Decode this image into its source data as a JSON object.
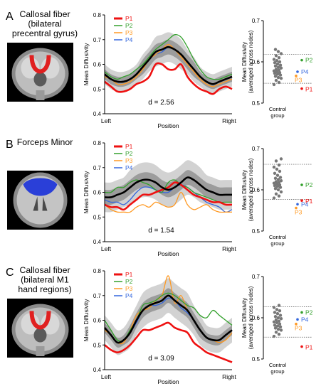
{
  "figure": {
    "panels": [
      {
        "letter": "A",
        "title_lines": [
          "Callosal fiber",
          "(bilateral",
          "precentral gyrus)"
        ],
        "effect_size": "d = 2.56",
        "brain_view": "coronal",
        "tract_color": "#e02020"
      },
      {
        "letter": "B",
        "title_lines": [
          "Forceps Minor"
        ],
        "effect_size": "d = 1.54",
        "brain_view": "axial",
        "tract_color": "#2a3fd8"
      },
      {
        "letter": "C",
        "title_lines": [
          "Callosal fiber",
          "(bilateral M1",
          "hand regions)"
        ],
        "effect_size": "d = 3.09",
        "brain_view": "coronal",
        "tract_color": "#e02020"
      }
    ],
    "colors": {
      "P1": "#ee1111",
      "P2": "#33a02c",
      "P3": "#ff9922",
      "P4": "#3366dd",
      "control": "#000000"
    }
  },
  "chart_data": [
    {
      "type": "line",
      "panel": "A",
      "xlabel": "Position",
      "ylabel": "Mean Diffusivity",
      "x_tick_labels": [
        "Left",
        "Right"
      ],
      "ylim": [
        0.4,
        0.8
      ],
      "yticks": [
        0.4,
        0.5,
        0.6,
        0.7,
        0.8
      ],
      "x": [
        0,
        5,
        10,
        15,
        20,
        25,
        30,
        35,
        40,
        45,
        50,
        55,
        60,
        65,
        70,
        75,
        80,
        85,
        90,
        95,
        100
      ],
      "control_mean": [
        0.56,
        0.54,
        0.53,
        0.53,
        0.54,
        0.56,
        0.59,
        0.62,
        0.65,
        0.66,
        0.67,
        0.66,
        0.64,
        0.61,
        0.58,
        0.55,
        0.53,
        0.52,
        0.53,
        0.54,
        0.55
      ],
      "band_inner": [
        0.02,
        0.02,
        0.02,
        0.02,
        0.02,
        0.02,
        0.03,
        0.03,
        0.03,
        0.03,
        0.03,
        0.03,
        0.03,
        0.03,
        0.03,
        0.02,
        0.02,
        0.02,
        0.02,
        0.02,
        0.02
      ],
      "band_outer": [
        0.04,
        0.04,
        0.04,
        0.04,
        0.04,
        0.04,
        0.05,
        0.05,
        0.06,
        0.06,
        0.06,
        0.06,
        0.06,
        0.05,
        0.05,
        0.04,
        0.04,
        0.04,
        0.04,
        0.04,
        0.04
      ],
      "series": [
        {
          "name": "P1",
          "values": [
            0.53,
            0.51,
            0.49,
            0.49,
            0.5,
            0.52,
            0.53,
            0.55,
            0.6,
            0.6,
            0.58,
            0.58,
            0.6,
            0.55,
            0.52,
            0.5,
            0.49,
            0.48,
            0.5,
            0.51,
            0.5
          ]
        },
        {
          "name": "P2",
          "values": [
            0.57,
            0.55,
            0.54,
            0.55,
            0.56,
            0.58,
            0.6,
            0.63,
            0.66,
            0.68,
            0.7,
            0.72,
            0.71,
            0.67,
            0.62,
            0.58,
            0.55,
            0.54,
            0.54,
            0.55,
            0.56
          ]
        },
        {
          "name": "P3",
          "values": [
            0.55,
            0.54,
            0.52,
            0.52,
            0.53,
            0.55,
            0.58,
            0.62,
            0.64,
            0.66,
            0.68,
            0.66,
            0.63,
            0.6,
            0.57,
            0.54,
            0.52,
            0.51,
            0.52,
            0.53,
            0.54
          ]
        },
        {
          "name": "P4",
          "values": [
            0.56,
            0.54,
            0.53,
            0.53,
            0.54,
            0.56,
            0.59,
            0.62,
            0.64,
            0.65,
            0.67,
            0.66,
            0.64,
            0.61,
            0.58,
            0.55,
            0.53,
            0.52,
            0.53,
            0.54,
            0.55
          ]
        }
      ]
    },
    {
      "type": "line",
      "panel": "B",
      "xlabel": "Position",
      "ylabel": "Mean Diffusivity",
      "x_tick_labels": [
        "Left",
        "Right"
      ],
      "ylim": [
        0.4,
        0.8
      ],
      "yticks": [
        0.4,
        0.5,
        0.6,
        0.7,
        0.8
      ],
      "x": [
        0,
        5,
        10,
        15,
        20,
        25,
        30,
        35,
        40,
        45,
        50,
        55,
        60,
        65,
        70,
        75,
        80,
        85,
        90,
        95,
        100
      ],
      "control_mean": [
        0.58,
        0.58,
        0.59,
        0.6,
        0.62,
        0.64,
        0.65,
        0.65,
        0.64,
        0.62,
        0.61,
        0.62,
        0.64,
        0.66,
        0.65,
        0.63,
        0.61,
        0.6,
        0.59,
        0.59,
        0.59
      ],
      "band_inner": [
        0.03,
        0.03,
        0.03,
        0.03,
        0.03,
        0.03,
        0.03,
        0.03,
        0.03,
        0.03,
        0.03,
        0.03,
        0.03,
        0.03,
        0.03,
        0.03,
        0.03,
        0.03,
        0.03,
        0.03,
        0.03
      ],
      "band_outer": [
        0.06,
        0.06,
        0.06,
        0.06,
        0.07,
        0.07,
        0.07,
        0.07,
        0.07,
        0.07,
        0.07,
        0.07,
        0.07,
        0.07,
        0.07,
        0.07,
        0.06,
        0.06,
        0.06,
        0.06,
        0.06
      ],
      "series": [
        {
          "name": "P1",
          "values": [
            0.55,
            0.54,
            0.54,
            0.53,
            0.55,
            0.57,
            0.59,
            0.59,
            0.6,
            0.61,
            0.62,
            0.64,
            0.63,
            0.61,
            0.59,
            0.58,
            0.57,
            0.56,
            0.56,
            0.55,
            0.55
          ]
        },
        {
          "name": "P2",
          "values": [
            0.6,
            0.6,
            0.62,
            0.62,
            0.64,
            0.65,
            0.64,
            0.63,
            0.61,
            0.6,
            0.64,
            0.65,
            0.63,
            0.62,
            0.6,
            0.59,
            0.58,
            0.57,
            0.56,
            0.56,
            0.56
          ]
        },
        {
          "name": "P3",
          "values": [
            0.55,
            0.53,
            0.52,
            0.52,
            0.52,
            0.54,
            0.55,
            0.54,
            0.56,
            0.55,
            0.54,
            0.55,
            0.6,
            0.55,
            0.53,
            0.54,
            0.55,
            0.53,
            0.52,
            0.52,
            0.52
          ]
        },
        {
          "name": "P4",
          "values": [
            0.57,
            0.56,
            0.56,
            0.55,
            0.57,
            0.6,
            0.62,
            0.62,
            0.61,
            0.6,
            0.6,
            0.62,
            0.63,
            0.62,
            0.6,
            0.58,
            0.56,
            0.55,
            0.54,
            0.52,
            0.53
          ]
        }
      ]
    },
    {
      "type": "line",
      "panel": "C",
      "xlabel": "Position",
      "ylabel": "Mean Diffusivity",
      "x_tick_labels": [
        "Left",
        "Right"
      ],
      "ylim": [
        0.4,
        0.8
      ],
      "yticks": [
        0.4,
        0.5,
        0.6,
        0.7,
        0.8
      ],
      "x": [
        0,
        5,
        10,
        15,
        20,
        25,
        30,
        35,
        40,
        45,
        50,
        55,
        60,
        65,
        70,
        75,
        80,
        85,
        90,
        95,
        100
      ],
      "control_mean": [
        0.57,
        0.54,
        0.51,
        0.52,
        0.55,
        0.6,
        0.64,
        0.66,
        0.67,
        0.68,
        0.7,
        0.68,
        0.66,
        0.64,
        0.6,
        0.56,
        0.53,
        0.52,
        0.52,
        0.54,
        0.56
      ],
      "band_inner": [
        0.02,
        0.02,
        0.02,
        0.02,
        0.03,
        0.03,
        0.03,
        0.03,
        0.03,
        0.03,
        0.03,
        0.03,
        0.03,
        0.03,
        0.03,
        0.03,
        0.02,
        0.02,
        0.02,
        0.02,
        0.02
      ],
      "band_outer": [
        0.05,
        0.05,
        0.05,
        0.05,
        0.06,
        0.06,
        0.07,
        0.07,
        0.07,
        0.07,
        0.07,
        0.07,
        0.07,
        0.07,
        0.06,
        0.06,
        0.05,
        0.05,
        0.05,
        0.05,
        0.05
      ],
      "series": [
        {
          "name": "P1",
          "values": [
            0.5,
            0.48,
            0.47,
            0.48,
            0.5,
            0.53,
            0.56,
            0.56,
            0.57,
            0.58,
            0.59,
            0.57,
            0.56,
            0.55,
            0.51,
            0.49,
            0.47,
            0.46,
            0.45,
            0.44,
            0.43
          ]
        },
        {
          "name": "P2",
          "values": [
            0.6,
            0.56,
            0.52,
            0.52,
            0.56,
            0.6,
            0.66,
            0.67,
            0.68,
            0.7,
            0.71,
            0.7,
            0.68,
            0.66,
            0.65,
            0.62,
            0.61,
            0.64,
            0.62,
            0.6,
            0.58
          ]
        },
        {
          "name": "P3",
          "values": [
            0.56,
            0.54,
            0.51,
            0.51,
            0.56,
            0.62,
            0.64,
            0.65,
            0.68,
            0.7,
            0.78,
            0.67,
            0.7,
            0.64,
            0.6,
            0.56,
            0.53,
            0.52,
            0.51,
            0.52,
            0.55
          ]
        },
        {
          "name": "P4",
          "values": [
            0.57,
            0.54,
            0.51,
            0.52,
            0.55,
            0.59,
            0.64,
            0.66,
            0.66,
            0.67,
            0.69,
            0.68,
            0.65,
            0.63,
            0.6,
            0.56,
            0.53,
            0.52,
            0.52,
            0.54,
            0.56
          ]
        }
      ]
    },
    {
      "type": "scatter",
      "panel": "A-summary",
      "ylabel": "Mean Diffusivity (averaged across nodes)",
      "category_label": "Control group",
      "ylim": [
        0.5,
        0.7
      ],
      "yticks": [
        0.5,
        0.6,
        0.7
      ],
      "control_points": [
        0.545,
        0.55,
        0.555,
        0.56,
        0.562,
        0.565,
        0.568,
        0.57,
        0.572,
        0.574,
        0.576,
        0.578,
        0.58,
        0.582,
        0.585,
        0.587,
        0.59,
        0.592,
        0.595,
        0.598,
        0.6,
        0.603,
        0.606,
        0.61,
        0.615,
        0.62,
        0.625,
        0.63
      ],
      "reference_lines": [
        0.618,
        0.548
      ],
      "patients": [
        {
          "name": "P1",
          "value": 0.535
        },
        {
          "name": "P2",
          "value": 0.604
        },
        {
          "name": "P3",
          "value": 0.566
        },
        {
          "name": "P4",
          "value": 0.576
        }
      ]
    },
    {
      "type": "scatter",
      "panel": "B-summary",
      "ylabel": "Mean Diffusivity (averaged across nodes)",
      "category_label": "Control group",
      "ylim": [
        0.5,
        0.7
      ],
      "yticks": [
        0.5,
        0.6,
        0.7
      ],
      "control_points": [
        0.58,
        0.585,
        0.59,
        0.595,
        0.6,
        0.603,
        0.606,
        0.608,
        0.61,
        0.612,
        0.614,
        0.616,
        0.618,
        0.62,
        0.622,
        0.625,
        0.628,
        0.63,
        0.635,
        0.64,
        0.645,
        0.65,
        0.655,
        0.66,
        0.67,
        0.675
      ],
      "reference_lines": [
        0.662,
        0.577
      ],
      "patients": [
        {
          "name": "P1",
          "value": 0.574
        },
        {
          "name": "P2",
          "value": 0.612
        },
        {
          "name": "P3",
          "value": 0.556
        },
        {
          "name": "P4",
          "value": 0.565
        }
      ]
    },
    {
      "type": "scatter",
      "panel": "C-summary",
      "ylabel": "Mean Diffusivity (averaged across nodes)",
      "category_label": "Control group",
      "ylim": [
        0.5,
        0.7
      ],
      "yticks": [
        0.5,
        0.6,
        0.7
      ],
      "control_points": [
        0.555,
        0.56,
        0.565,
        0.57,
        0.572,
        0.575,
        0.578,
        0.58,
        0.582,
        0.585,
        0.588,
        0.59,
        0.592,
        0.595,
        0.598,
        0.6,
        0.603,
        0.606,
        0.61,
        0.613,
        0.617,
        0.62,
        0.625,
        0.63
      ],
      "reference_lines": [
        0.627,
        0.553
      ],
      "patients": [
        {
          "name": "P1",
          "value": 0.53
        },
        {
          "name": "P2",
          "value": 0.613
        },
        {
          "name": "P3",
          "value": 0.585
        },
        {
          "name": "P4",
          "value": 0.596
        }
      ]
    }
  ]
}
